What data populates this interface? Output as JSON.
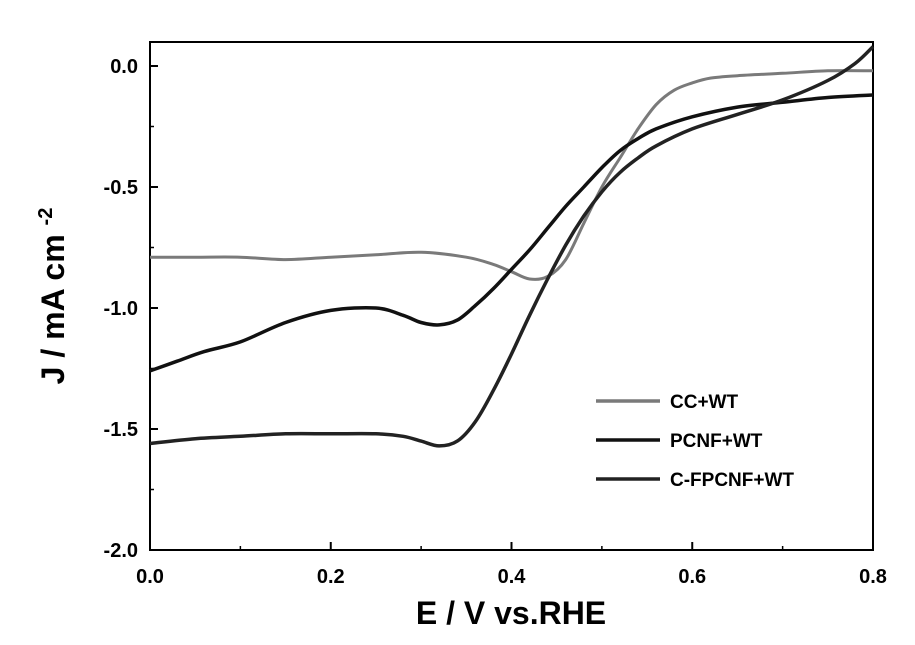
{
  "chart_data": {
    "type": "line",
    "title": "",
    "xlabel": "E / V vs.RHE",
    "ylabel": "J / mA cm",
    "ylabel_superscript": "-2",
    "xlim": [
      0.0,
      0.8
    ],
    "ylim": [
      -2.0,
      0.1
    ],
    "x_ticks": [
      0.0,
      0.2,
      0.4,
      0.6,
      0.8
    ],
    "x_tick_labels": [
      "0.0",
      "0.2",
      "0.4",
      "0.6",
      "0.8"
    ],
    "y_ticks": [
      0.0,
      -0.5,
      -1.0,
      -1.5,
      -2.0
    ],
    "y_tick_labels": [
      "0.0",
      "-0.5",
      "-1.0",
      "-1.5",
      "-2.0"
    ],
    "grid": false,
    "legend_position": "bottom-right",
    "series": [
      {
        "name": "CC+WT",
        "color": "#7a7a7a",
        "x": [
          0.0,
          0.05,
          0.1,
          0.15,
          0.2,
          0.25,
          0.3,
          0.35,
          0.38,
          0.4,
          0.42,
          0.44,
          0.46,
          0.48,
          0.5,
          0.52,
          0.54,
          0.56,
          0.58,
          0.6,
          0.62,
          0.65,
          0.7,
          0.75,
          0.8
        ],
        "values": [
          -0.79,
          -0.79,
          -0.79,
          -0.8,
          -0.79,
          -0.78,
          -0.77,
          -0.79,
          -0.82,
          -0.85,
          -0.88,
          -0.87,
          -0.8,
          -0.65,
          -0.5,
          -0.38,
          -0.26,
          -0.16,
          -0.1,
          -0.07,
          -0.05,
          -0.04,
          -0.03,
          -0.02,
          -0.02
        ]
      },
      {
        "name": "PCNF+WT",
        "color": "#111111",
        "x": [
          0.0,
          0.03,
          0.06,
          0.1,
          0.15,
          0.2,
          0.25,
          0.28,
          0.3,
          0.32,
          0.34,
          0.36,
          0.38,
          0.4,
          0.42,
          0.44,
          0.46,
          0.48,
          0.5,
          0.52,
          0.54,
          0.56,
          0.6,
          0.65,
          0.7,
          0.75,
          0.8
        ],
        "values": [
          -1.26,
          -1.22,
          -1.18,
          -1.14,
          -1.06,
          -1.01,
          -1.0,
          -1.03,
          -1.06,
          -1.07,
          -1.05,
          -0.99,
          -0.92,
          -0.84,
          -0.76,
          -0.67,
          -0.58,
          -0.5,
          -0.42,
          -0.35,
          -0.3,
          -0.26,
          -0.21,
          -0.17,
          -0.15,
          -0.13,
          -0.12
        ]
      },
      {
        "name": "C-FPCNF+WT",
        "color": "#222222",
        "x": [
          0.0,
          0.05,
          0.1,
          0.15,
          0.2,
          0.25,
          0.28,
          0.3,
          0.32,
          0.34,
          0.36,
          0.38,
          0.4,
          0.42,
          0.44,
          0.46,
          0.48,
          0.5,
          0.52,
          0.54,
          0.56,
          0.6,
          0.65,
          0.7,
          0.75,
          0.78,
          0.8
        ],
        "values": [
          -1.56,
          -1.54,
          -1.53,
          -1.52,
          -1.52,
          -1.52,
          -1.53,
          -1.55,
          -1.57,
          -1.55,
          -1.47,
          -1.34,
          -1.19,
          -1.03,
          -0.88,
          -0.74,
          -0.62,
          -0.52,
          -0.44,
          -0.38,
          -0.33,
          -0.26,
          -0.2,
          -0.14,
          -0.06,
          0.01,
          0.08
        ]
      }
    ]
  }
}
